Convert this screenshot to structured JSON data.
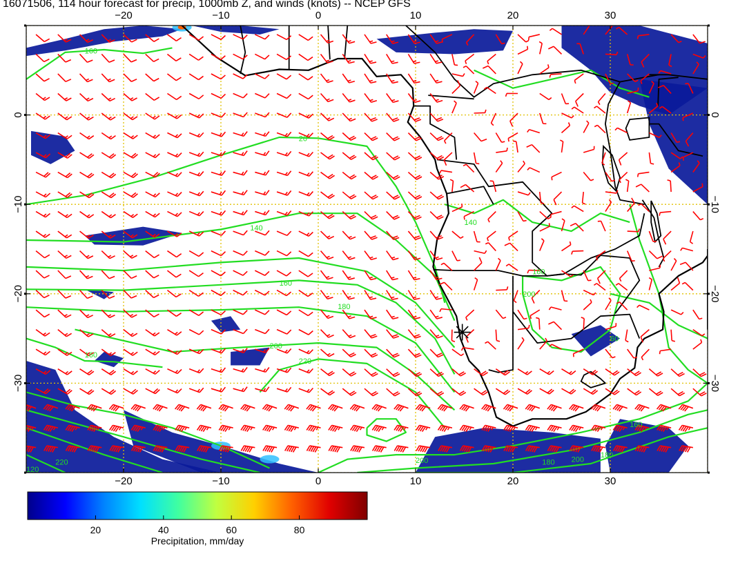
{
  "title": "16071506, 114 hour forecast for precip, 1000mb Z, and winds (knots) -- NCEP GFS",
  "map": {
    "lon_range": [
      -30,
      40
    ],
    "lat_range": [
      -40,
      10
    ],
    "lon_ticks": [
      -20,
      -10,
      0,
      10,
      20,
      30
    ],
    "lat_ticks": [
      0,
      -10,
      -20,
      -30
    ],
    "lon_tick_labels": [
      "−20",
      "−10",
      "0",
      "10",
      "20",
      "30"
    ],
    "lat_tick_labels": [
      "0",
      "−10",
      "−20",
      "−30"
    ],
    "grid_color": "#e0c000",
    "coast_color": "#000000",
    "wind_barb_color": "#ff0000",
    "contour_color": "#22dd22",
    "contour_labels": [
      "160",
      "20",
      "140",
      "160",
      "180",
      "200",
      "220",
      "160",
      "180",
      "200",
      "220",
      "120",
      "60",
      "160",
      "180",
      "200",
      "160",
      "140",
      "200"
    ],
    "marker_icon": "asterisk-marker"
  },
  "colorbar": {
    "min": 0,
    "max": 100,
    "ticks": [
      20,
      40,
      60,
      80
    ],
    "tick_labels": [
      "20",
      "40",
      "60",
      "80"
    ],
    "label": "Precipitation, mm/day",
    "colors": [
      "#00008b",
      "#0000ff",
      "#0080ff",
      "#00e0ff",
      "#40ffa0",
      "#c0ff40",
      "#ffd000",
      "#ff6000",
      "#e00000",
      "#800000"
    ]
  }
}
